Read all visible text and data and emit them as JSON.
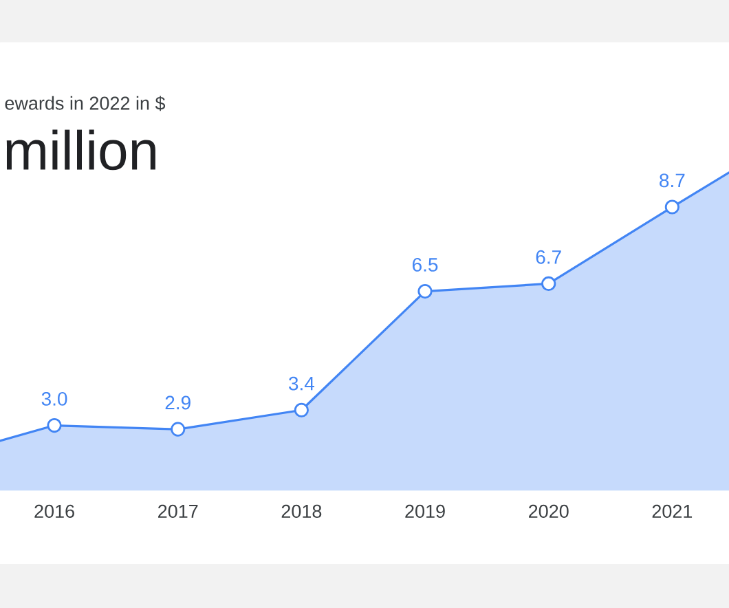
{
  "chart_data": {
    "type": "area",
    "title": "ewards in 2022 in $",
    "subtitle": "million",
    "x": [
      2015.56,
      2016,
      2017,
      2018,
      2019,
      2020,
      2021,
      2021.46
    ],
    "values": [
      2.6,
      3.0,
      2.9,
      3.4,
      6.5,
      6.7,
      8.7,
      9.6
    ],
    "value_labels": [
      null,
      "3.0",
      "2.9",
      "3.4",
      "6.5",
      "6.7",
      "8.7",
      null
    ],
    "color": "#4285f4",
    "marker": "circle",
    "xlim": [
      2015.56,
      2021.46
    ],
    "xticks": [
      2016,
      2017,
      2018,
      2019,
      2020,
      2021
    ],
    "tick_labels": "x"
  }
}
